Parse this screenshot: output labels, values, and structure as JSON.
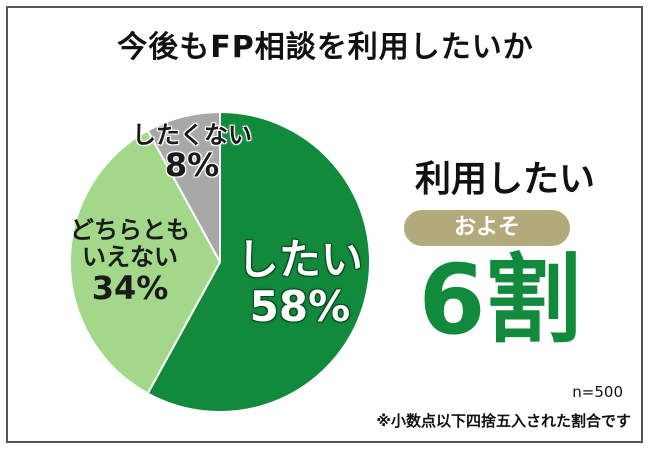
{
  "chart_data": {
    "type": "pie",
    "title": "今後もFP相談を利用したいか",
    "slices": [
      {
        "label": "したい",
        "value": 58,
        "value_text": "58%",
        "color": "#128a3c"
      },
      {
        "label": "どちらとも\nいえない",
        "value": 34,
        "value_text": "34%",
        "color": "#a3d88a"
      },
      {
        "label": "したくない",
        "value": 8,
        "value_text": "8%",
        "color": "#a8a8a8"
      }
    ],
    "start": "12 o'clock",
    "direction": "clockwise"
  },
  "highlight": {
    "title": "利用したい",
    "badge": "およそ",
    "ratio": "6割",
    "badge_color": "#b3aa7b",
    "ratio_color": "#128a3c"
  },
  "notes": {
    "sample": "n=500",
    "rounding": "※小数点以下四捨五入された割合です"
  }
}
